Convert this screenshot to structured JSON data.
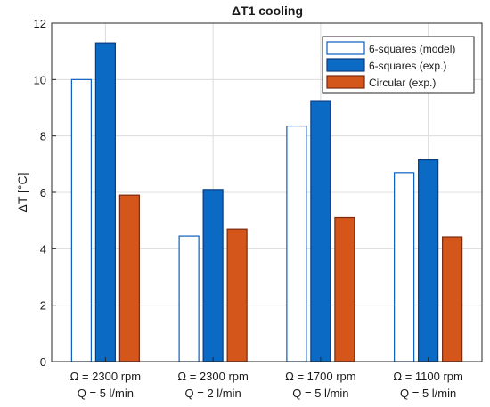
{
  "chart_data": {
    "type": "bar",
    "title": "ΔT1 cooling",
    "ylabel": "ΔT [°C]",
    "xlabel": "",
    "ylim": [
      0,
      12
    ],
    "yticks": [
      0,
      2,
      4,
      6,
      8,
      10,
      12
    ],
    "grid": true,
    "legend_position": "top-right",
    "categories": [
      [
        "Ω = 2300 rpm",
        "Q = 5 l/min"
      ],
      [
        "Ω = 2300 rpm",
        "Q = 2 l/min"
      ],
      [
        "Ω = 1700 rpm",
        "Q = 5 l/min"
      ],
      [
        "Ω = 1100 rpm",
        "Q = 5 l/min"
      ]
    ],
    "series": [
      {
        "name": "6-squares (model)",
        "values": [
          10.0,
          4.45,
          8.35,
          6.7
        ],
        "fill": "#ffffff",
        "stroke": "#0a5fc0"
      },
      {
        "name": "6-squares (exp.)",
        "values": [
          11.3,
          6.1,
          9.25,
          7.15
        ],
        "fill": "#0a6ac4",
        "stroke": "#0a3c82"
      },
      {
        "name": "Circular (exp.)",
        "values": [
          5.9,
          4.7,
          5.1,
          4.42
        ],
        "fill": "#d4561a",
        "stroke": "#7a2a10"
      }
    ]
  }
}
